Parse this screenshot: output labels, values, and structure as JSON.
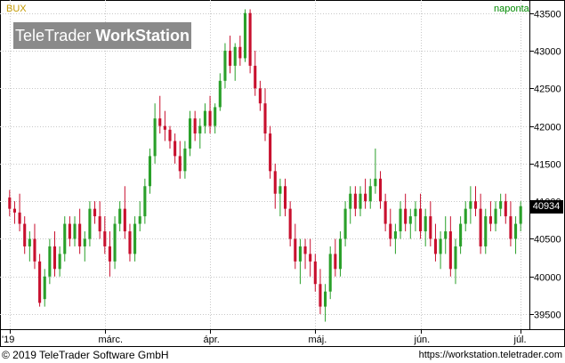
{
  "header": {
    "symbol": "BUX",
    "period": "naponta"
  },
  "watermark": {
    "part1": "TeleTrader",
    "part2": "WorkStation"
  },
  "footer": {
    "copyright": "© 2019 TeleTrader Software GmbH",
    "url": "https://workstation.teletrader.com"
  },
  "colors": {
    "up": "#2aa02a",
    "down": "#c8102e",
    "grid": "#c8c8c8",
    "watermark": "#8a8a8a",
    "symbol": "#c49a00",
    "period": "#008a00"
  },
  "chart_data": {
    "type": "candlestick",
    "y_axis": {
      "min": 39300,
      "max": 43650,
      "ticks": [
        39500,
        40000,
        40500,
        41000,
        41500,
        42000,
        42500,
        43000,
        43500
      ],
      "position": "right"
    },
    "x_axis": {
      "labels": [
        {
          "text": "'19",
          "index": 0
        },
        {
          "text": "márc.",
          "index": 19
        },
        {
          "text": "ápr.",
          "index": 40
        },
        {
          "text": "máj.",
          "index": 61
        },
        {
          "text": "jún.",
          "index": 82
        },
        {
          "text": "júl.",
          "index": 102
        }
      ]
    },
    "last_price": 40934,
    "candles": [
      [
        41050,
        41150,
        40800,
        40900
      ],
      [
        40900,
        41000,
        40700,
        40850
      ],
      [
        40850,
        41100,
        40600,
        40700
      ],
      [
        40700,
        40800,
        40300,
        40400
      ],
      [
        40400,
        40600,
        40200,
        40500
      ],
      [
        40500,
        40700,
        40100,
        40200
      ],
      [
        40200,
        40300,
        39600,
        39650
      ],
      [
        39700,
        40100,
        39600,
        40000
      ],
      [
        40000,
        40500,
        39900,
        40400
      ],
      [
        40400,
        40600,
        40000,
        40100
      ],
      [
        40100,
        40400,
        40000,
        40300
      ],
      [
        40300,
        40800,
        40200,
        40700
      ],
      [
        40700,
        40800,
        40400,
        40500
      ],
      [
        40500,
        40800,
        40400,
        40700
      ],
      [
        40700,
        40900,
        40300,
        40400
      ],
      [
        40400,
        40600,
        40200,
        40500
      ],
      [
        40500,
        41000,
        40400,
        40900
      ],
      [
        40900,
        41000,
        40700,
        40800
      ],
      [
        40800,
        41000,
        40500,
        40600
      ],
      [
        40600,
        40800,
        40300,
        40400
      ],
      [
        40400,
        40600,
        40000,
        40200
      ],
      [
        40200,
        40800,
        40100,
        40700
      ],
      [
        40700,
        41000,
        40600,
        40900
      ],
      [
        40900,
        41200,
        40500,
        40600
      ],
      [
        40600,
        40700,
        40200,
        40300
      ],
      [
        40300,
        40800,
        40200,
        40700
      ],
      [
        40700,
        41000,
        40600,
        40800
      ],
      [
        40800,
        41300,
        40700,
        41200
      ],
      [
        41200,
        41700,
        41100,
        41600
      ],
      [
        41600,
        42300,
        41500,
        42100
      ],
      [
        42100,
        42400,
        41900,
        42000
      ],
      [
        42000,
        42200,
        41800,
        41950
      ],
      [
        41950,
        42000,
        41700,
        41800
      ],
      [
        41800,
        41900,
        41500,
        41600
      ],
      [
        41600,
        41800,
        41300,
        41400
      ],
      [
        41400,
        41800,
        41300,
        41700
      ],
      [
        41700,
        42200,
        41600,
        42100
      ],
      [
        42100,
        42200,
        41800,
        41900
      ],
      [
        41900,
        42100,
        41700,
        42000
      ],
      [
        42000,
        42300,
        41900,
        42200
      ],
      [
        42200,
        42400,
        41900,
        42000
      ],
      [
        42000,
        42300,
        41900,
        42250
      ],
      [
        42250,
        42700,
        42200,
        42600
      ],
      [
        42600,
        43100,
        42500,
        43000
      ],
      [
        43000,
        43200,
        42700,
        42800
      ],
      [
        42800,
        43100,
        42600,
        43050
      ],
      [
        43050,
        43200,
        42800,
        42900
      ],
      [
        42900,
        43550,
        42850,
        43500
      ],
      [
        43500,
        43550,
        42700,
        42800
      ],
      [
        42800,
        43000,
        42400,
        42500
      ],
      [
        42500,
        42600,
        42200,
        42300
      ],
      [
        42300,
        42500,
        41800,
        41900
      ],
      [
        41900,
        42000,
        41300,
        41400
      ],
      [
        41400,
        41500,
        40900,
        41100
      ],
      [
        41100,
        41300,
        40800,
        41200
      ],
      [
        41200,
        41300,
        40800,
        40900
      ],
      [
        40900,
        41000,
        40400,
        40500
      ],
      [
        40500,
        40700,
        40100,
        40200
      ],
      [
        40200,
        40500,
        39900,
        40400
      ],
      [
        40400,
        40500,
        40100,
        40300
      ],
      [
        40300,
        40500,
        40000,
        40200
      ],
      [
        40200,
        40300,
        39800,
        39900
      ],
      [
        39900,
        40100,
        39500,
        39600
      ],
      [
        39600,
        39900,
        39400,
        39800
      ],
      [
        39800,
        40400,
        39700,
        40300
      ],
      [
        40300,
        40500,
        40000,
        40100
      ],
      [
        40100,
        40600,
        40000,
        40500
      ],
      [
        40500,
        41000,
        40400,
        40900
      ],
      [
        40900,
        41200,
        40700,
        41100
      ],
      [
        41100,
        41200,
        40800,
        40900
      ],
      [
        40900,
        41200,
        40800,
        41100
      ],
      [
        41100,
        41300,
        40900,
        41000
      ],
      [
        41000,
        41300,
        40900,
        41200
      ],
      [
        41200,
        41700,
        41100,
        41300
      ],
      [
        41300,
        41400,
        40900,
        41000
      ],
      [
        41000,
        41100,
        40600,
        40700
      ],
      [
        40700,
        40900,
        40400,
        40500
      ],
      [
        40500,
        40700,
        40300,
        40600
      ],
      [
        40600,
        41000,
        40500,
        40900
      ],
      [
        40900,
        41100,
        40600,
        40700
      ],
      [
        40700,
        40900,
        40500,
        40800
      ],
      [
        40800,
        41000,
        40600,
        40900
      ],
      [
        40900,
        41100,
        40500,
        40600
      ],
      [
        40600,
        40900,
        40400,
        40800
      ],
      [
        40800,
        41000,
        40400,
        40500
      ],
      [
        40500,
        40700,
        40200,
        40300
      ],
      [
        40300,
        40600,
        40100,
        40500
      ],
      [
        40500,
        40800,
        40300,
        40600
      ],
      [
        40600,
        40800,
        40000,
        40100
      ],
      [
        40100,
        40500,
        39900,
        40400
      ],
      [
        40400,
        40800,
        40300,
        40700
      ],
      [
        40700,
        41000,
        40600,
        40900
      ],
      [
        40900,
        41200,
        40700,
        41000
      ],
      [
        41000,
        41200,
        40800,
        40900
      ],
      [
        40900,
        41100,
        40300,
        40400
      ],
      [
        40400,
        40900,
        40300,
        40800
      ],
      [
        40800,
        41000,
        40600,
        40700
      ],
      [
        40700,
        41000,
        40600,
        40900
      ],
      [
        40900,
        41100,
        40800,
        41000
      ],
      [
        41000,
        41100,
        40700,
        40800
      ],
      [
        40800,
        41000,
        40400,
        40500
      ],
      [
        40500,
        40800,
        40300,
        40700
      ],
      [
        40700,
        41000,
        40600,
        40934
      ]
    ]
  }
}
